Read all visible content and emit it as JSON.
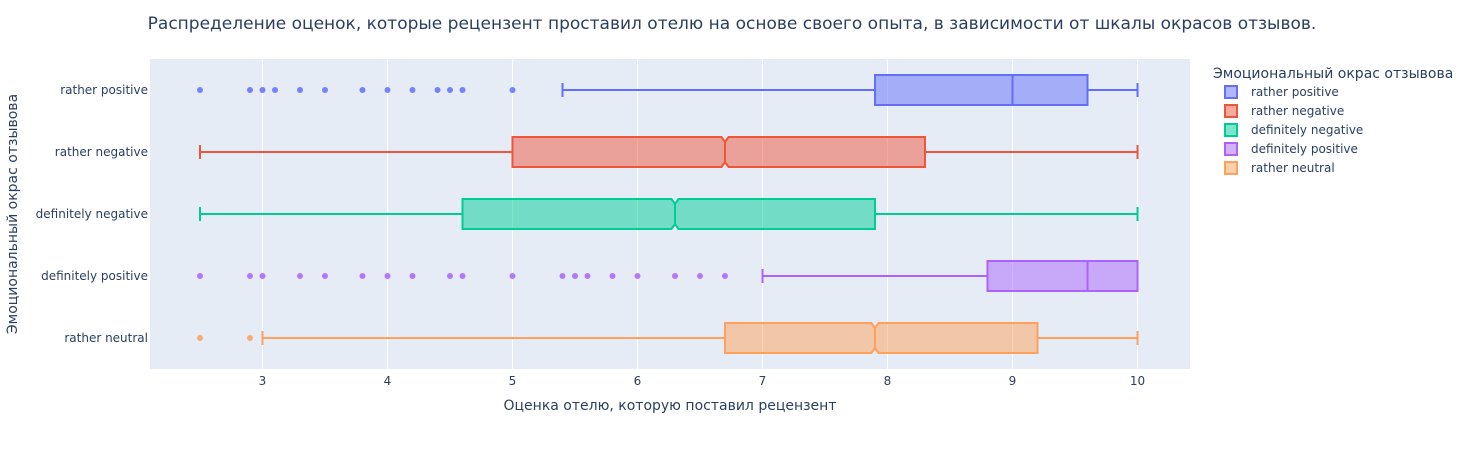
{
  "chart_data": {
    "type": "box",
    "orientation": "horizontal",
    "title": "Распределение оценок, которые рецензент проставил отелю на основе своего опыта, в зависимости от шкалы окрасов отзывов.",
    "xlabel": "Оценка отелю, которую поставил рецензент",
    "ylabel": "Эмоциональный окрас отзывова",
    "xlim": [
      2.1,
      10.42
    ],
    "xticks": [
      3,
      4,
      5,
      6,
      7,
      8,
      9,
      10
    ],
    "grid": true,
    "legend": {
      "title": "Эмоциональный окрас отзывова",
      "placement": "right"
    },
    "series": [
      {
        "name": "rather positive",
        "color": "#636efa",
        "notched": false,
        "whisker_low": 5.4,
        "q1": 7.9,
        "median": 9.0,
        "q3": 9.6,
        "whisker_high": 10.0,
        "outliers": [
          2.5,
          2.9,
          3.0,
          3.1,
          3.3,
          3.5,
          3.8,
          4.0,
          4.2,
          4.4,
          4.5,
          4.6,
          5.0
        ]
      },
      {
        "name": "rather negative",
        "color": "#ef553b",
        "notched": true,
        "whisker_low": 2.5,
        "q1": 5.0,
        "median": 6.7,
        "q3": 8.3,
        "whisker_high": 10.0,
        "outliers": []
      },
      {
        "name": "definitely negative",
        "color": "#00cc96",
        "notched": true,
        "whisker_low": 2.5,
        "q1": 4.6,
        "median": 6.3,
        "q3": 7.9,
        "whisker_high": 10.0,
        "outliers": []
      },
      {
        "name": "definitely positive",
        "color": "#ab63fa",
        "notched": false,
        "whisker_low": 7.0,
        "q1": 8.8,
        "median": 9.6,
        "q3": 10.0,
        "whisker_high": 10.0,
        "outliers": [
          2.5,
          2.9,
          3.0,
          3.3,
          3.5,
          3.8,
          4.0,
          4.2,
          4.5,
          4.6,
          5.0,
          5.4,
          5.5,
          5.6,
          5.8,
          6.0,
          6.3,
          6.5,
          6.7
        ]
      },
      {
        "name": "rather neutral",
        "color": "#ffa15a",
        "notched": true,
        "whisker_low": 3.0,
        "q1": 6.7,
        "median": 7.9,
        "q3": 9.2,
        "whisker_high": 10.0,
        "outliers": [
          2.5,
          2.9
        ]
      }
    ]
  }
}
